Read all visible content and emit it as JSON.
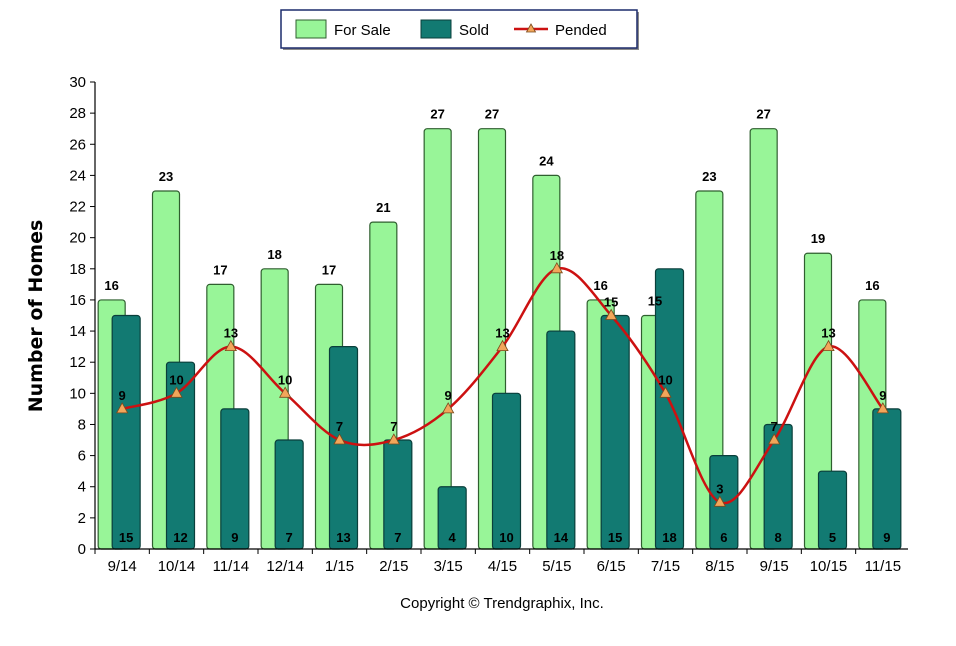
{
  "chart_data": {
    "type": "bar",
    "categories": [
      "9/14",
      "10/14",
      "11/14",
      "12/14",
      "1/15",
      "2/15",
      "3/15",
      "4/15",
      "5/15",
      "6/15",
      "7/15",
      "8/15",
      "9/15",
      "10/15",
      "11/15"
    ],
    "series": [
      {
        "name": "For Sale",
        "kind": "bar",
        "color": "#98f598",
        "stroke": "#2f5f2f",
        "values": [
          16,
          23,
          17,
          18,
          17,
          21,
          27,
          27,
          24,
          16,
          15,
          23,
          27,
          19,
          16
        ]
      },
      {
        "name": "Sold",
        "kind": "bar",
        "color": "#127a72",
        "stroke": "#0a3f3b",
        "values": [
          15,
          12,
          9,
          7,
          13,
          7,
          4,
          10,
          14,
          15,
          18,
          6,
          8,
          5,
          9
        ]
      },
      {
        "name": "Pended",
        "kind": "line",
        "color": "#cc1111",
        "marker_color": "#f2a65a",
        "values": [
          9,
          10,
          13,
          10,
          7,
          7,
          9,
          13,
          18,
          15,
          10,
          3,
          7,
          13,
          9
        ]
      }
    ],
    "ylabel": "Number of Homes",
    "ylim": [
      0,
      30
    ],
    "yticks": [
      0,
      2,
      4,
      6,
      8,
      10,
      12,
      14,
      16,
      18,
      20,
      22,
      24,
      26,
      28,
      30
    ],
    "legend_position": "top-center",
    "footer": "Copyright © Trendgraphix, Inc."
  }
}
